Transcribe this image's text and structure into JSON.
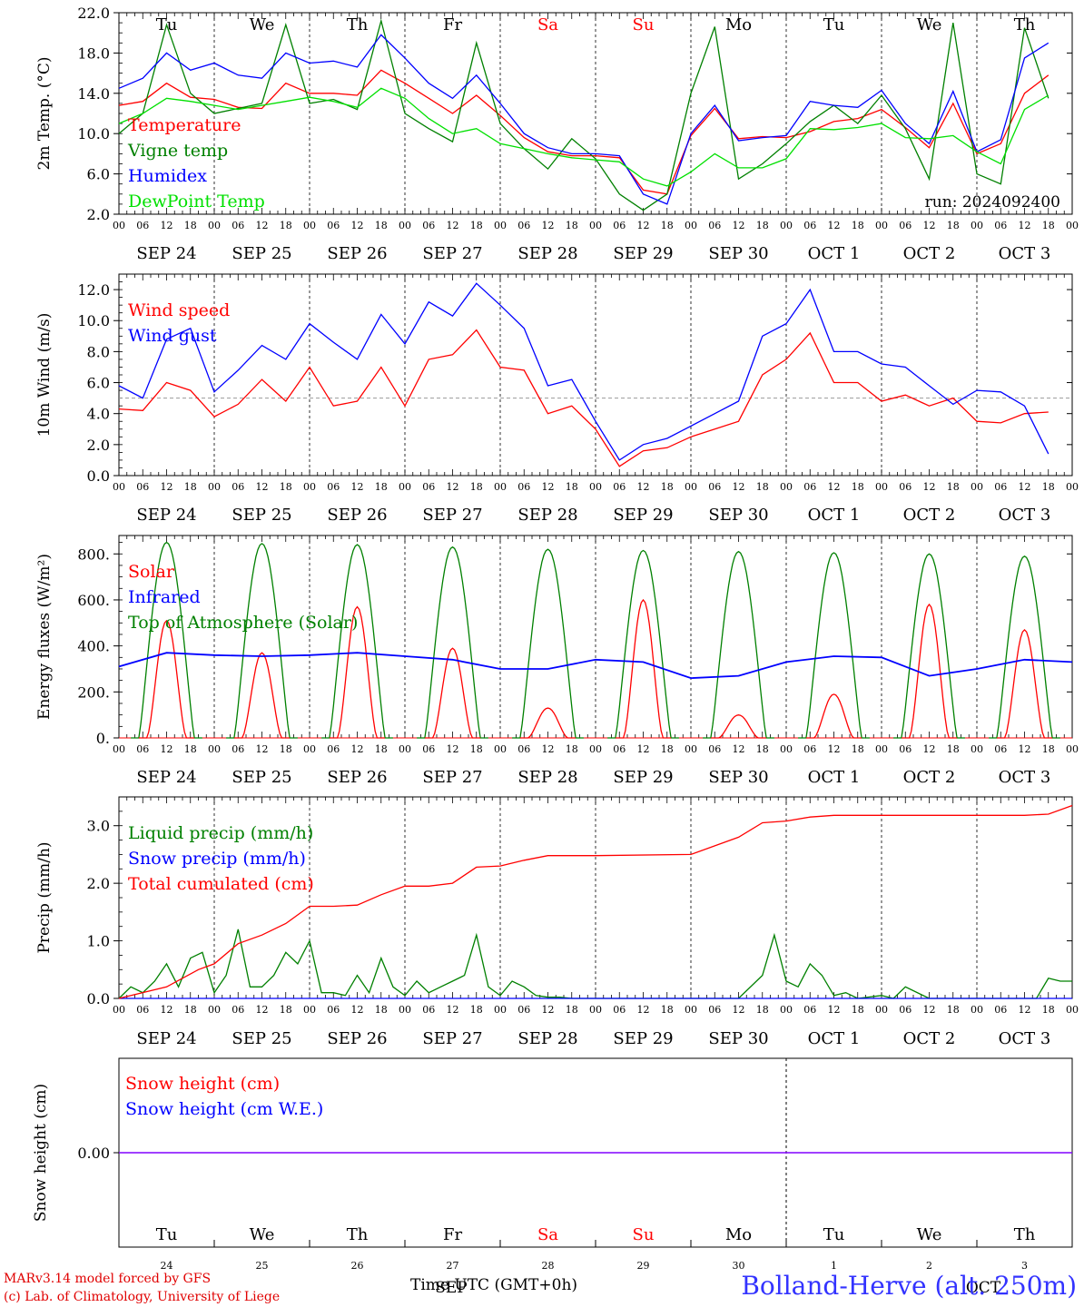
{
  "footer": {
    "model_credit": "MARv3.14 model forced by GFS",
    "lab_credit": "(c) Lab. of Climatology, University of Liege",
    "x_axis_title": "Time UTC (GMT+0h)",
    "month_label": "SEP",
    "oct_label": "OCT",
    "station": "Bolland-Herve (alt. 250m)"
  },
  "hour_ticks": [
    "00",
    "06",
    "12",
    "18"
  ],
  "date_labels": [
    "SEP 24",
    "SEP 25",
    "SEP 26",
    "SEP 27",
    "SEP 28",
    "SEP 29",
    "SEP 30",
    "OCT  1",
    "OCT  2",
    "OCT  3"
  ],
  "day_numbers": [
    "24",
    "25",
    "26",
    "27",
    "28",
    "29",
    "30",
    "1",
    "2",
    "3"
  ],
  "weekdays": [
    "Tu",
    "We",
    "Th",
    "Fr",
    "Sa",
    "Su",
    "Mo",
    "Tu",
    "We",
    "Th"
  ],
  "weekend_flags": [
    false,
    false,
    false,
    false,
    true,
    true,
    false,
    false,
    false,
    false
  ],
  "colors": {
    "red": "#ff0000",
    "green": "#008000",
    "blue": "#0000ff",
    "lightgreen": "#00e000",
    "purple": "#8000ff",
    "ref": "#999999"
  },
  "chart_data": [
    {
      "type": "line",
      "ylabel": "2m Temp. (°C)",
      "ylim": [
        2,
        22
      ],
      "yticks": [
        2,
        6,
        10,
        14,
        18,
        22
      ],
      "ytick_labels": [
        "2.0",
        "6.0",
        "10.0",
        "14.0",
        "18.0",
        "22.0"
      ],
      "run_label": "run: 2024092400",
      "x_unit": "hours since SEP 24 00 UTC",
      "series": [
        {
          "name": "Temperature",
          "color": "red",
          "x": [
            0,
            6,
            12,
            18,
            24,
            30,
            36,
            42,
            48,
            54,
            60,
            66,
            72,
            78,
            84,
            90,
            96,
            102,
            108,
            114,
            120,
            126,
            132,
            138,
            144,
            150,
            156,
            162,
            168,
            174,
            180,
            186,
            192,
            198,
            204,
            210,
            216,
            222,
            228,
            234
          ],
          "y": [
            12.8,
            13.2,
            15.0,
            13.6,
            13.4,
            12.6,
            12.5,
            15.0,
            14.0,
            14.0,
            13.8,
            16.3,
            15.0,
            13.5,
            12.0,
            13.8,
            11.8,
            9.6,
            8.2,
            7.8,
            7.8,
            7.6,
            4.4,
            4.0,
            9.8,
            12.5,
            9.5,
            9.7,
            9.6,
            10.2,
            11.2,
            11.5,
            12.4,
            10.6,
            8.6,
            13.0,
            8.0,
            9.0,
            14.0,
            15.8
          ]
        },
        {
          "name": "Vigne temp",
          "color": "green",
          "x": [
            0,
            6,
            12,
            18,
            24,
            30,
            36,
            42,
            48,
            54,
            60,
            66,
            72,
            78,
            84,
            90,
            96,
            102,
            108,
            114,
            120,
            126,
            132,
            138,
            144,
            150,
            156,
            162,
            168,
            174,
            180,
            186,
            192,
            198,
            204,
            210,
            216,
            222,
            228,
            234
          ],
          "y": [
            10.0,
            12.0,
            20.8,
            14.0,
            12.0,
            12.5,
            13.0,
            20.8,
            13.0,
            13.4,
            12.4,
            21.2,
            12.0,
            10.5,
            9.2,
            19.0,
            11.0,
            8.5,
            6.5,
            9.5,
            7.5,
            4.0,
            2.4,
            4.0,
            14.0,
            20.6,
            5.5,
            7.0,
            9.0,
            11.2,
            12.8,
            11.0,
            13.8,
            10.5,
            5.5,
            21.0,
            6.0,
            5.0,
            20.5,
            13.5
          ]
        },
        {
          "name": "Humidex",
          "color": "blue",
          "x": [
            0,
            6,
            12,
            18,
            24,
            30,
            36,
            42,
            48,
            54,
            60,
            66,
            72,
            78,
            84,
            90,
            96,
            102,
            108,
            114,
            120,
            126,
            132,
            138,
            144,
            150,
            156,
            162,
            168,
            174,
            180,
            186,
            192,
            198,
            204,
            210,
            216,
            222,
            228,
            234
          ],
          "y": [
            14.5,
            15.5,
            18.0,
            16.3,
            17.0,
            15.8,
            15.5,
            18.0,
            17.0,
            17.2,
            16.6,
            19.8,
            17.5,
            15.0,
            13.5,
            15.8,
            13.0,
            10.0,
            8.6,
            8.0,
            8.0,
            7.8,
            4.0,
            3.0,
            10.0,
            12.8,
            9.3,
            9.6,
            9.8,
            13.2,
            12.8,
            12.6,
            14.3,
            11.0,
            9.0,
            14.2,
            8.2,
            9.4,
            17.5,
            19.0
          ]
        },
        {
          "name": "DewPoint Temp",
          "color": "lightgreen",
          "x": [
            0,
            6,
            12,
            18,
            24,
            30,
            36,
            42,
            48,
            54,
            60,
            66,
            72,
            78,
            84,
            90,
            96,
            102,
            108,
            114,
            120,
            126,
            132,
            138,
            144,
            150,
            156,
            162,
            168,
            174,
            180,
            186,
            192,
            198,
            204,
            210,
            216,
            222,
            228,
            234
          ],
          "y": [
            11.0,
            12.0,
            13.5,
            13.2,
            12.8,
            12.4,
            12.8,
            13.2,
            13.6,
            13.2,
            12.6,
            14.5,
            13.5,
            11.5,
            10.0,
            10.5,
            9.0,
            8.5,
            8.0,
            7.6,
            7.4,
            7.2,
            5.5,
            4.8,
            6.2,
            8.0,
            6.6,
            6.6,
            7.5,
            10.5,
            10.4,
            10.6,
            11.0,
            9.6,
            9.5,
            9.8,
            8.2,
            7.0,
            12.4,
            13.8
          ]
        }
      ]
    },
    {
      "type": "line",
      "ylabel": "10m Wind (m/s)",
      "ylim": [
        0,
        13
      ],
      "yticks": [
        0,
        2,
        4,
        6,
        8,
        10,
        12
      ],
      "ytick_labels": [
        "0.0",
        "2.0",
        "4.0",
        "6.0",
        "8.0",
        "10.0",
        "12.0"
      ],
      "reference_line": 5,
      "series": [
        {
          "name": "Wind speed",
          "color": "red",
          "x": [
            0,
            6,
            12,
            18,
            24,
            30,
            36,
            42,
            48,
            54,
            60,
            66,
            72,
            78,
            84,
            90,
            96,
            102,
            108,
            114,
            120,
            126,
            132,
            138,
            144,
            150,
            156,
            162,
            168,
            174,
            180,
            186,
            192,
            198,
            204,
            210,
            216,
            222,
            228,
            234
          ],
          "y": [
            4.3,
            4.2,
            6.0,
            5.5,
            3.8,
            4.6,
            6.2,
            4.8,
            7.0,
            4.5,
            4.8,
            7.0,
            4.5,
            7.5,
            7.8,
            9.4,
            7.0,
            6.8,
            4.0,
            4.5,
            3.0,
            0.6,
            1.6,
            1.8,
            2.5,
            3.0,
            3.5,
            6.5,
            7.5,
            9.2,
            6.0,
            6.0,
            4.8,
            5.2,
            4.5,
            5.0,
            3.5,
            3.4,
            4.0,
            4.1
          ]
        },
        {
          "name": "Wind gust",
          "color": "blue",
          "x": [
            0,
            6,
            12,
            18,
            24,
            30,
            36,
            42,
            48,
            54,
            60,
            66,
            72,
            78,
            84,
            90,
            96,
            102,
            108,
            114,
            120,
            126,
            132,
            138,
            144,
            150,
            156,
            162,
            168,
            174,
            180,
            186,
            192,
            198,
            204,
            210,
            216,
            222,
            228,
            234
          ],
          "y": [
            5.8,
            5.0,
            8.8,
            9.5,
            5.4,
            6.8,
            8.4,
            7.5,
            9.8,
            8.6,
            7.5,
            10.4,
            8.5,
            11.2,
            10.3,
            12.4,
            11.0,
            9.5,
            5.8,
            6.2,
            3.5,
            1.0,
            2.0,
            2.4,
            3.2,
            4.0,
            4.8,
            9.0,
            9.8,
            12.0,
            8.0,
            8.0,
            7.2,
            7.0,
            5.8,
            4.6,
            5.5,
            5.4,
            4.5,
            1.4
          ]
        }
      ]
    },
    {
      "type": "line",
      "ylabel": "Energy fluxes (W/m²)",
      "ylim": [
        0,
        880
      ],
      "yticks": [
        0,
        200,
        400,
        600,
        800
      ],
      "ytick_labels": [
        "0.",
        "200.",
        "400.",
        "600.",
        "800."
      ],
      "series": [
        {
          "name": "Solar",
          "color": "red",
          "daily_peaks": [
            510,
            370,
            570,
            390,
            130,
            600,
            100,
            190,
            580,
            470
          ]
        },
        {
          "name": "Infrared",
          "color": "blue",
          "x": [
            0,
            12,
            24,
            36,
            48,
            60,
            72,
            84,
            96,
            108,
            120,
            132,
            144,
            156,
            168,
            180,
            192,
            204,
            216,
            228,
            240
          ],
          "y": [
            310,
            370,
            360,
            355,
            360,
            370,
            355,
            340,
            300,
            300,
            340,
            330,
            260,
            270,
            330,
            355,
            350,
            270,
            300,
            340,
            330
          ]
        },
        {
          "name": "Top of Atmosphere (Solar)",
          "color": "green",
          "daily_peaks": [
            850,
            845,
            840,
            830,
            820,
            815,
            810,
            805,
            800,
            790
          ]
        }
      ]
    },
    {
      "type": "line",
      "ylabel": "Precip (mm/h)",
      "ylim": [
        0,
        3.5
      ],
      "yticks": [
        0,
        1,
        2,
        3
      ],
      "ytick_labels": [
        "0.0",
        "1.0",
        "2.0",
        "3.0"
      ],
      "series": [
        {
          "name": "Liquid precip (mm/h)",
          "color": "green",
          "x": [
            0,
            3,
            6,
            9,
            12,
            15,
            18,
            21,
            24,
            27,
            30,
            33,
            36,
            39,
            42,
            45,
            48,
            51,
            54,
            57,
            60,
            63,
            66,
            69,
            72,
            75,
            78,
            81,
            84,
            87,
            90,
            93,
            96,
            99,
            102,
            105,
            108,
            111,
            114,
            117,
            120,
            144,
            156,
            162,
            165,
            168,
            171,
            174,
            177,
            180,
            183,
            186,
            192,
            195,
            198,
            204,
            210,
            216,
            222,
            228,
            231,
            234,
            237,
            240
          ],
          "y": [
            0,
            0.2,
            0.1,
            0.3,
            0.6,
            0.2,
            0.7,
            0.8,
            0.1,
            0.4,
            1.2,
            0.2,
            0.2,
            0.4,
            0.8,
            0.6,
            1.0,
            0.1,
            0.1,
            0.05,
            0.4,
            0.1,
            0.7,
            0.2,
            0.05,
            0.3,
            0.1,
            0.2,
            0.3,
            0.4,
            1.1,
            0.2,
            0.05,
            0.3,
            0.2,
            0.05,
            0.02,
            0.02,
            0,
            0,
            0,
            0,
            0,
            0.4,
            1.1,
            0.3,
            0.2,
            0.6,
            0.4,
            0.05,
            0.1,
            0,
            0.05,
            0,
            0.2,
            0,
            0,
            0,
            0,
            0,
            0,
            0.35,
            0.3,
            0.3
          ]
        },
        {
          "name": "Snow precip (mm/h)",
          "color": "blue",
          "x": [
            0,
            240
          ],
          "y": [
            0,
            0
          ]
        },
        {
          "name": "Total cumulated (cm)",
          "color": "red",
          "x": [
            0,
            12,
            20,
            24,
            30,
            36,
            42,
            48,
            54,
            60,
            66,
            72,
            78,
            84,
            90,
            96,
            102,
            108,
            114,
            120,
            144,
            156,
            162,
            168,
            174,
            180,
            186,
            192,
            198,
            204,
            210,
            216,
            222,
            228,
            234,
            240
          ],
          "y": [
            0,
            0.2,
            0.5,
            0.6,
            0.95,
            1.1,
            1.3,
            1.6,
            1.6,
            1.62,
            1.8,
            1.95,
            1.95,
            2.0,
            2.28,
            2.3,
            2.4,
            2.48,
            2.48,
            2.48,
            2.5,
            2.8,
            3.05,
            3.08,
            3.15,
            3.18,
            3.18,
            3.18,
            3.18,
            3.18,
            3.18,
            3.18,
            3.18,
            3.18,
            3.2,
            3.35
          ]
        }
      ]
    },
    {
      "type": "line",
      "ylabel": "Snow height (cm)",
      "ytick_labels": [
        "0.00"
      ],
      "series": [
        {
          "name": "Snow height (cm)",
          "color": "red",
          "x": [
            0,
            240
          ],
          "y": [
            0,
            0
          ]
        },
        {
          "name": "Snow height (cm W.E.)",
          "color": "blue",
          "x": [
            0,
            240
          ],
          "y": [
            0,
            0
          ]
        }
      ]
    }
  ]
}
